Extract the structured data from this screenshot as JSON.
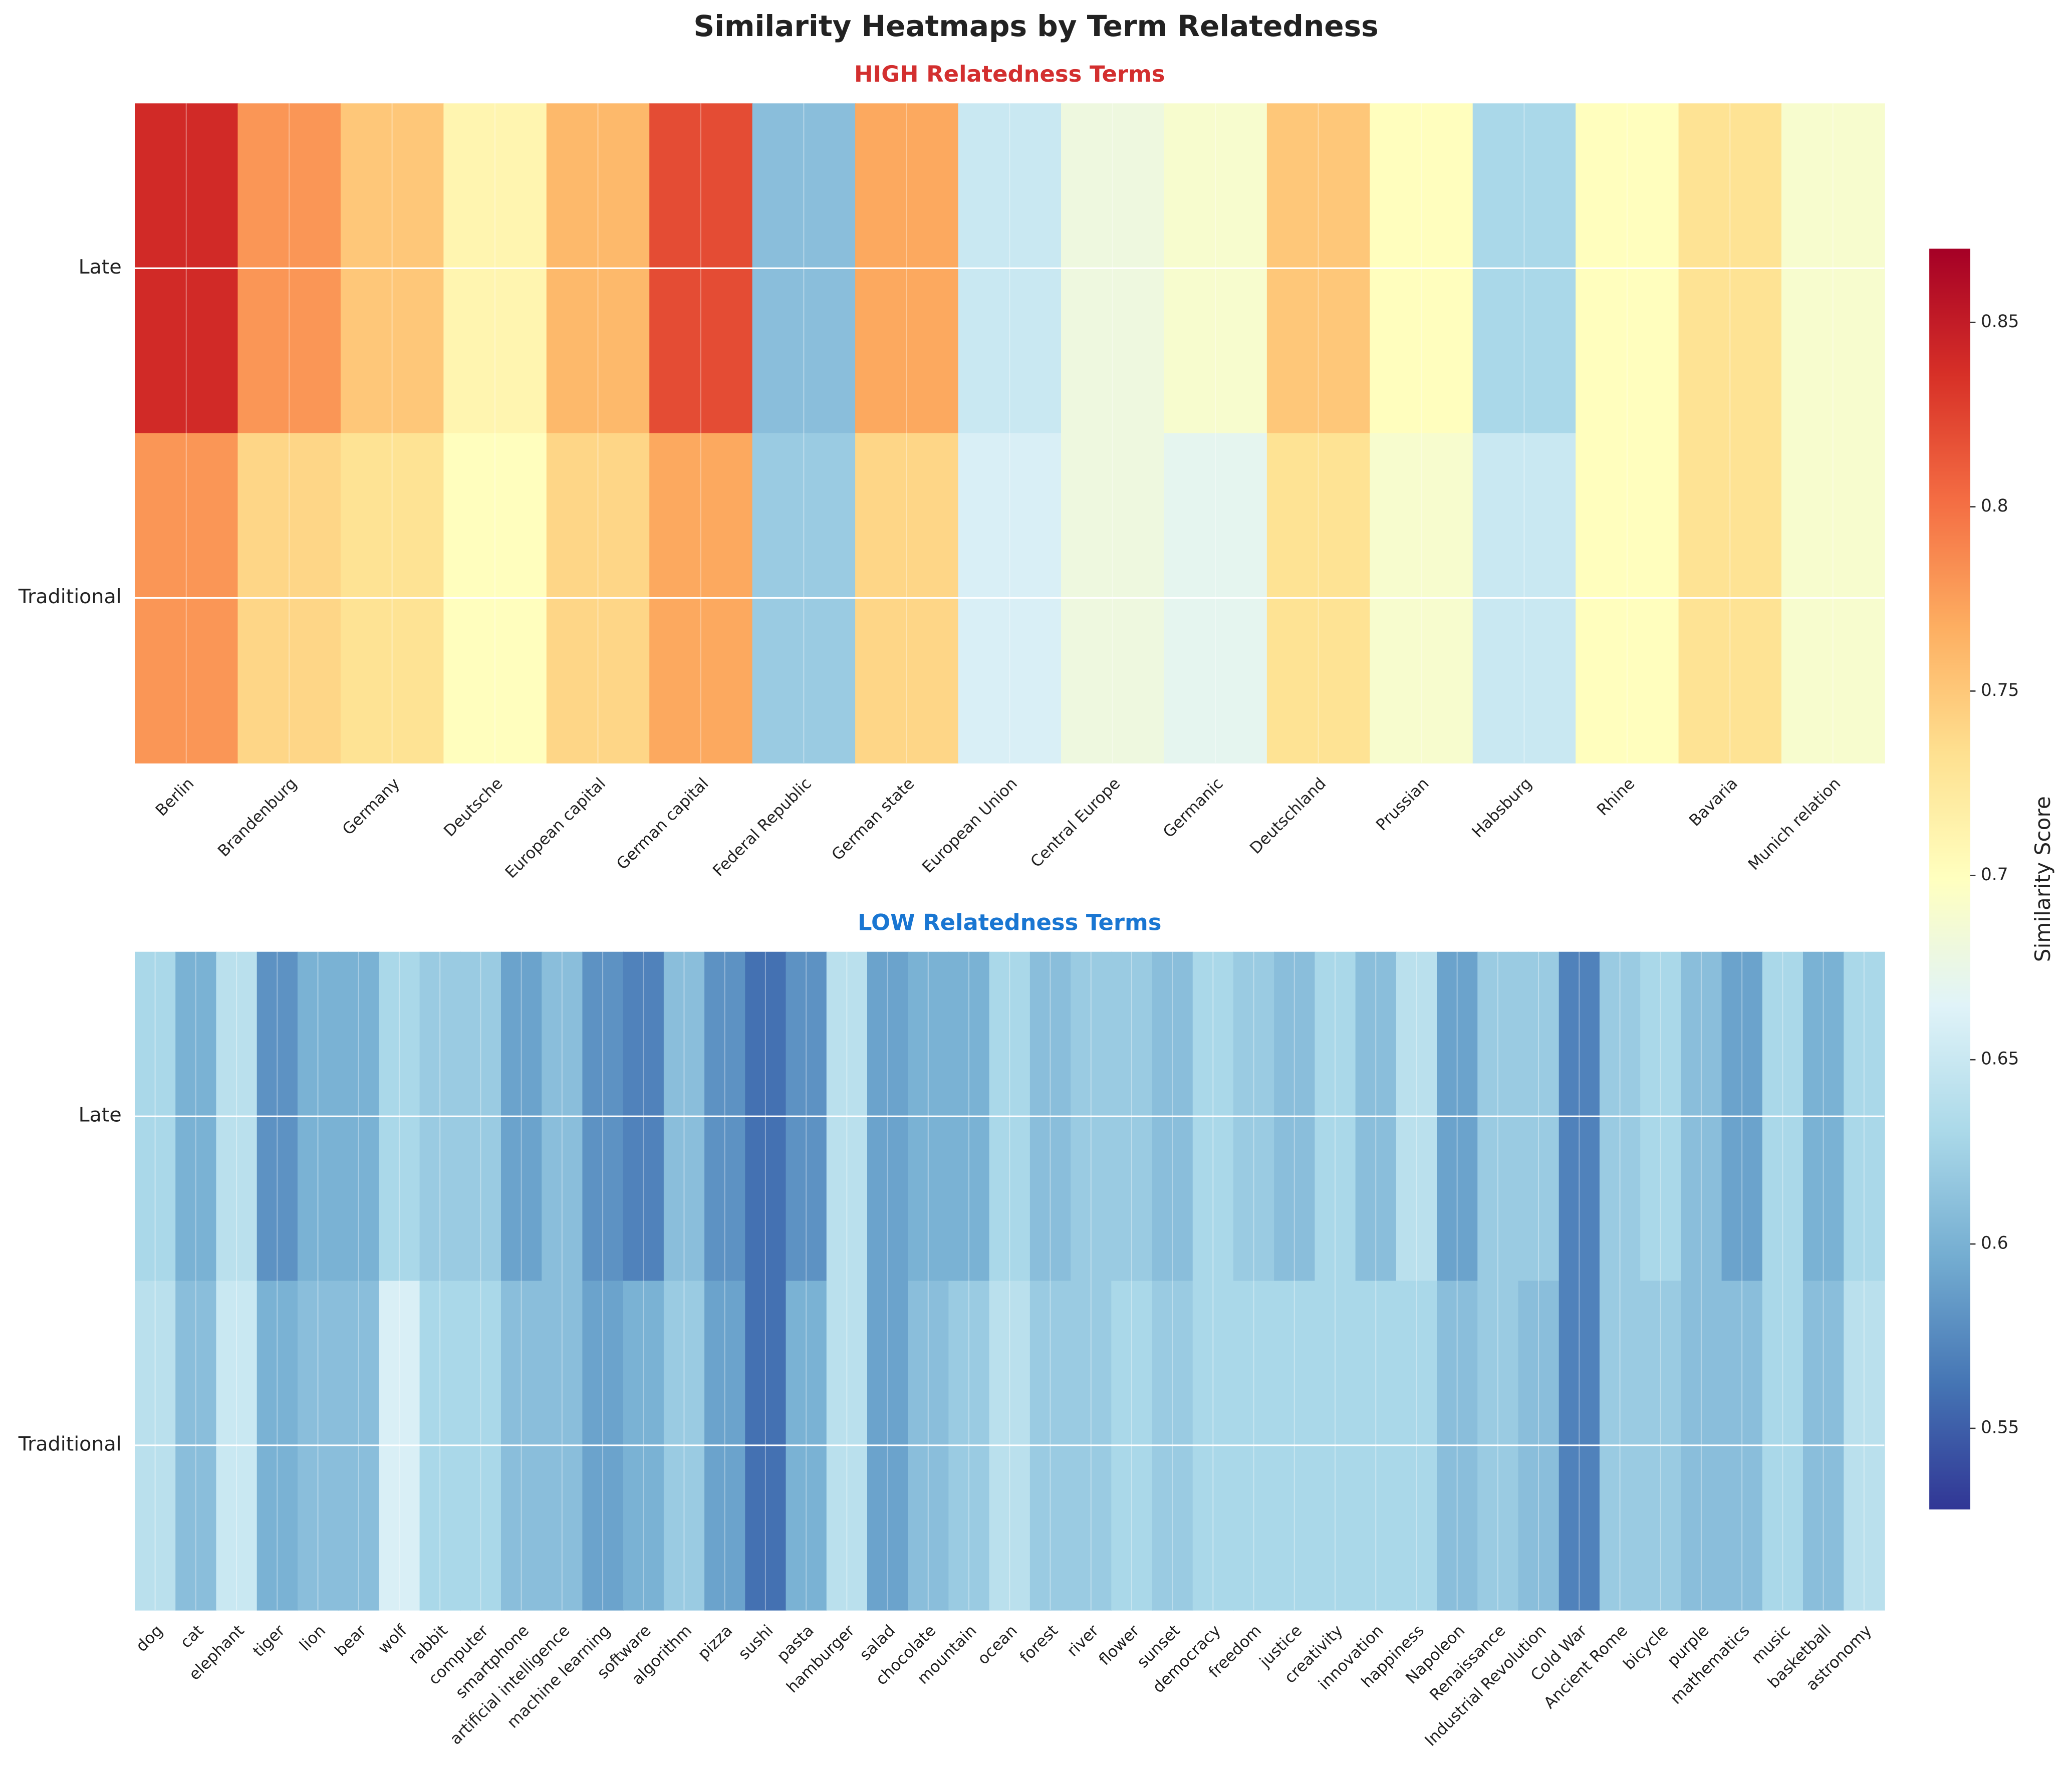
{
  "title": "Similarity Heatmaps by Term Relatedness",
  "colorbar": {
    "label": "Similarity Score",
    "lim": [
      0.528,
      0.87
    ],
    "ticks": [
      0.55,
      0.6,
      0.65,
      0.7,
      0.75,
      0.8,
      0.85
    ],
    "colormap": [
      "#313695",
      "#4575b4",
      "#74add1",
      "#abd9e9",
      "#e0f3f8",
      "#ffffbf",
      "#fee090",
      "#fdae61",
      "#f46d43",
      "#d73027",
      "#a50026"
    ]
  },
  "chart_data": [
    {
      "type": "heatmap",
      "title": "HIGH Relatedness Terms",
      "title_color": "#d32f2f",
      "rows": [
        "Late",
        "Traditional"
      ],
      "categories": [
        "Berlin",
        "Brandenburg",
        "Germany",
        "Deutsche",
        "European capital",
        "German capital",
        "Federal Republic",
        "German state",
        "European Union",
        "Central Europe",
        "Germanic",
        "Deutschland",
        "Prussian",
        "Habsburg",
        "Rhine",
        "Bavaria",
        "Munich relation"
      ],
      "values": [
        [
          0.84,
          0.78,
          0.75,
          0.71,
          0.76,
          0.82,
          0.61,
          0.77,
          0.65,
          0.68,
          0.69,
          0.75,
          0.7,
          0.63,
          0.7,
          0.73,
          0.69
        ],
        [
          0.78,
          0.74,
          0.73,
          0.7,
          0.74,
          0.77,
          0.62,
          0.74,
          0.66,
          0.68,
          0.67,
          0.73,
          0.69,
          0.65,
          0.7,
          0.73,
          0.69
        ]
      ]
    },
    {
      "type": "heatmap",
      "title": "LOW Relatedness Terms",
      "title_color": "#1976d2",
      "rows": [
        "Late",
        "Traditional"
      ],
      "categories": [
        "dog",
        "cat",
        "elephant",
        "tiger",
        "lion",
        "bear",
        "wolf",
        "rabbit",
        "computer",
        "smartphone",
        "artificial intelligence",
        "machine learning",
        "software",
        "algorithm",
        "pizza",
        "sushi",
        "pasta",
        "hamburger",
        "salad",
        "chocolate",
        "mountain",
        "ocean",
        "forest",
        "river",
        "flower",
        "sunset",
        "democracy",
        "freedom",
        "justice",
        "creativity",
        "innovation",
        "happiness",
        "Napoleon",
        "Renaissance",
        "Industrial Revolution",
        "Cold War",
        "Ancient Rome",
        "bicycle",
        "purple",
        "mathematics",
        "music",
        "basketball",
        "astronomy"
      ],
      "values": [
        [
          0.63,
          0.6,
          0.64,
          0.58,
          0.6,
          0.6,
          0.63,
          0.62,
          0.62,
          0.59,
          0.61,
          0.58,
          0.57,
          0.61,
          0.58,
          0.56,
          0.58,
          0.64,
          0.59,
          0.6,
          0.6,
          0.63,
          0.61,
          0.62,
          0.62,
          0.61,
          0.63,
          0.62,
          0.61,
          0.63,
          0.61,
          0.64,
          0.59,
          0.62,
          0.62,
          0.57,
          0.62,
          0.63,
          0.61,
          0.59,
          0.63,
          0.6,
          0.63
        ],
        [
          0.64,
          0.61,
          0.65,
          0.6,
          0.61,
          0.61,
          0.66,
          0.63,
          0.63,
          0.61,
          0.61,
          0.59,
          0.6,
          0.62,
          0.59,
          0.56,
          0.6,
          0.64,
          0.59,
          0.61,
          0.62,
          0.64,
          0.62,
          0.62,
          0.63,
          0.62,
          0.63,
          0.63,
          0.63,
          0.63,
          0.63,
          0.63,
          0.61,
          0.62,
          0.61,
          0.57,
          0.62,
          0.62,
          0.61,
          0.61,
          0.63,
          0.61,
          0.64
        ]
      ]
    }
  ]
}
